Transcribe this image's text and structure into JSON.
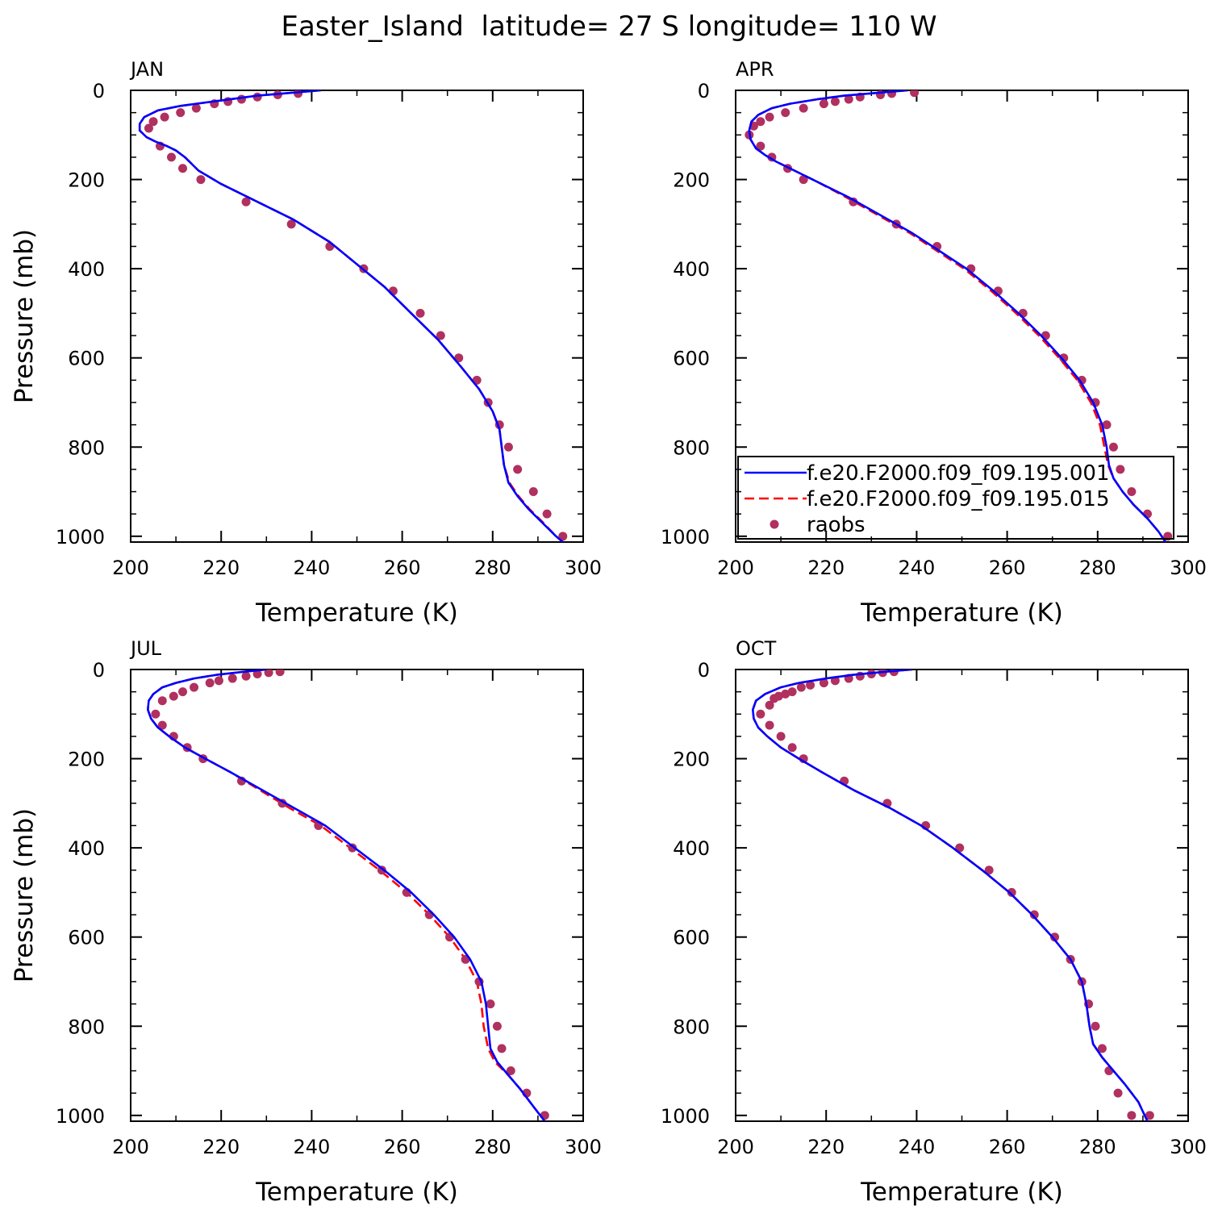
{
  "figure": {
    "title": "Easter_Island  latitude= 27 S longitude= 110 W"
  },
  "chart_data": [
    {
      "type": "line",
      "panel_label": "JAN",
      "xlabel": "Temperature (K)",
      "ylabel": "Pressure (mb)",
      "xlim": [
        200,
        300
      ],
      "ylim": [
        0,
        1013
      ],
      "y_inverted": true,
      "xticks": [
        200,
        220,
        240,
        260,
        280,
        300
      ],
      "yticks": [
        0,
        200,
        400,
        600,
        800,
        1000
      ],
      "show_ylabel": true,
      "series": [
        {
          "name": "f.e20.F2000.f09_f09.195.001",
          "style": "solid",
          "color": "#0000ff",
          "x": [
            242,
            236,
            228,
            222,
            216,
            211,
            206,
            203,
            202,
            202,
            203.5,
            205.5,
            208,
            210,
            212,
            215,
            220,
            228,
            236,
            244,
            250,
            256,
            262,
            268,
            273,
            277,
            280,
            281.5,
            282,
            282.5,
            283.5,
            285.5,
            288,
            291,
            294,
            295.5
          ],
          "y": [
            0,
            5,
            12,
            20,
            28,
            35,
            45,
            60,
            75,
            90,
            105,
            115,
            125,
            135,
            150,
            180,
            210,
            250,
            290,
            340,
            390,
            440,
            500,
            560,
            620,
            670,
            720,
            760,
            800,
            840,
            880,
            910,
            940,
            970,
            1000,
            1013
          ]
        },
        {
          "name": "f.e20.F2000.f09_f09.195.015",
          "style": "dashed",
          "color": "#ff0000",
          "x": [
            242,
            236,
            228,
            222,
            216,
            211,
            206,
            203,
            202,
            202,
            203.5,
            205.5,
            208,
            210,
            212,
            215,
            220,
            228,
            236,
            244,
            250,
            256,
            262,
            268,
            273,
            277,
            280,
            281.5,
            282,
            282.5,
            283.7,
            285.7,
            288.2,
            291.2,
            294,
            295.5
          ],
          "y": [
            0,
            5,
            12,
            20,
            28,
            35,
            45,
            60,
            75,
            90,
            105,
            115,
            125,
            135,
            150,
            180,
            210,
            250,
            290,
            340,
            390,
            440,
            500,
            560,
            620,
            670,
            720,
            760,
            800,
            840,
            880,
            910,
            940,
            970,
            1000,
            1013
          ]
        },
        {
          "name": "raobs",
          "style": "points",
          "color": "#b03060",
          "x": [
            237,
            232.5,
            228,
            224.5,
            221.5,
            218.5,
            214.5,
            211,
            207.5,
            205,
            204,
            206.5,
            209,
            211.5,
            215.5,
            225.5,
            235.5,
            244,
            251.5,
            258,
            264,
            268.5,
            272.5,
            276.5,
            279,
            281.5,
            283.5,
            285.5,
            289,
            292,
            295.5
          ],
          "y": [
            7,
            10,
            15,
            20,
            25,
            30,
            40,
            50,
            60,
            70,
            85,
            125,
            150,
            175,
            200,
            250,
            300,
            350,
            400,
            450,
            500,
            550,
            600,
            650,
            700,
            750,
            800,
            850,
            900,
            950,
            1000
          ]
        }
      ]
    },
    {
      "type": "line",
      "panel_label": "APR",
      "xlabel": "Temperature (K)",
      "ylabel": "",
      "xlim": [
        200,
        300
      ],
      "ylim": [
        0,
        1013
      ],
      "y_inverted": true,
      "xticks": [
        200,
        220,
        240,
        260,
        280,
        300
      ],
      "yticks": [
        0,
        200,
        400,
        600,
        800,
        1000
      ],
      "show_ylabel": false,
      "legend": {
        "placement": "bottom-right",
        "entries": [
          {
            "label": "f.e20.F2000.f09_f09.195.001",
            "style": "solid",
            "color": "#0000ff"
          },
          {
            "label": "f.e20.F2000.f09_f09.195.015",
            "style": "dashed",
            "color": "#ff0000"
          },
          {
            "label": "raobs",
            "style": "points",
            "color": "#b03060"
          }
        ]
      },
      "series": [
        {
          "name": "f.e20.F2000.f09_f09.195.001",
          "style": "solid",
          "color": "#0000ff",
          "x": [
            238,
            232,
            224,
            218,
            212,
            208,
            205,
            203.5,
            203,
            203.3,
            204.5,
            206.5,
            209,
            213,
            218,
            225,
            232,
            239,
            245,
            251,
            257,
            262.5,
            267.5,
            272,
            276,
            279,
            281,
            282,
            282.5,
            283.5,
            285.5,
            288,
            291,
            293.5,
            295
          ],
          "y": [
            0,
            5,
            12,
            20,
            30,
            40,
            55,
            70,
            90,
            110,
            130,
            145,
            160,
            180,
            205,
            240,
            280,
            320,
            360,
            400,
            450,
            500,
            550,
            600,
            650,
            700,
            750,
            800,
            840,
            870,
            900,
            930,
            960,
            990,
            1013
          ]
        },
        {
          "name": "f.e20.F2000.f09_f09.195.015",
          "style": "dashed",
          "color": "#ff0000",
          "x": [
            238,
            232,
            224,
            218,
            212,
            208,
            205,
            203.5,
            203,
            203.3,
            204.5,
            206.5,
            209,
            213,
            218,
            224.5,
            231.5,
            238.5,
            244.5,
            250.5,
            256.5,
            262,
            267,
            271.5,
            275.5,
            278.5,
            280.5,
            281.5,
            282.3,
            283.5,
            285.5,
            288,
            291,
            293.5,
            295
          ],
          "y": [
            0,
            5,
            12,
            20,
            30,
            40,
            55,
            70,
            90,
            110,
            130,
            145,
            160,
            180,
            205,
            240,
            280,
            320,
            360,
            400,
            450,
            500,
            550,
            600,
            650,
            700,
            750,
            800,
            840,
            870,
            900,
            930,
            960,
            990,
            1013
          ]
        },
        {
          "name": "raobs",
          "style": "points",
          "color": "#b03060",
          "x": [
            239.5,
            234.5,
            232,
            227.5,
            225,
            222,
            219.5,
            215,
            211,
            207.5,
            205.5,
            204,
            203,
            205.5,
            208,
            211.5,
            215,
            226,
            235.5,
            244.5,
            252,
            258,
            263.5,
            268.5,
            272.5,
            276.5,
            279.5,
            282,
            283.5,
            285,
            287.5,
            291,
            295.5
          ],
          "y": [
            5,
            7,
            10,
            15,
            20,
            25,
            30,
            40,
            50,
            60,
            70,
            80,
            100,
            125,
            150,
            175,
            200,
            250,
            300,
            350,
            400,
            450,
            500,
            550,
            600,
            650,
            700,
            750,
            800,
            850,
            900,
            950,
            1000
          ]
        }
      ]
    },
    {
      "type": "line",
      "panel_label": "JUL",
      "xlabel": "Temperature (K)",
      "ylabel": "Pressure (mb)",
      "xlim": [
        200,
        300
      ],
      "ylim": [
        0,
        1013
      ],
      "y_inverted": true,
      "xticks": [
        200,
        220,
        240,
        260,
        280,
        300
      ],
      "yticks": [
        0,
        200,
        400,
        600,
        800,
        1000
      ],
      "show_ylabel": true,
      "series": [
        {
          "name": "f.e20.F2000.f09_f09.195.001",
          "style": "solid",
          "color": "#0000ff",
          "x": [
            230,
            225,
            219,
            214,
            210,
            207,
            205,
            204,
            203.8,
            204.5,
            206,
            208.5,
            212,
            216.5,
            222,
            229,
            236,
            243,
            249.5,
            256,
            262,
            267,
            271.5,
            275,
            277.5,
            278.5,
            279,
            279.5,
            281,
            283.5,
            286,
            289,
            291.5
          ],
          "y": [
            0,
            5,
            12,
            20,
            30,
            40,
            55,
            70,
            90,
            110,
            130,
            150,
            175,
            200,
            230,
            270,
            310,
            350,
            400,
            450,
            500,
            550,
            600,
            650,
            700,
            750,
            800,
            850,
            880,
            910,
            940,
            980,
            1013
          ]
        },
        {
          "name": "f.e20.F2000.f09_f09.195.015",
          "style": "dashed",
          "color": "#ff0000",
          "x": [
            230,
            225,
            219,
            214,
            210,
            207,
            205,
            204,
            203.8,
            204.5,
            206,
            208.5,
            212,
            216.5,
            222,
            228.5,
            235,
            242,
            248.5,
            255,
            261,
            266,
            270.5,
            274,
            276.5,
            277.5,
            278,
            279,
            280.5,
            283.5,
            286,
            289,
            291.5
          ],
          "y": [
            0,
            5,
            12,
            20,
            30,
            40,
            55,
            70,
            90,
            110,
            130,
            150,
            175,
            200,
            230,
            270,
            310,
            350,
            400,
            450,
            500,
            550,
            600,
            650,
            700,
            750,
            800,
            850,
            880,
            910,
            940,
            980,
            1013
          ]
        },
        {
          "name": "raobs",
          "style": "points",
          "color": "#b03060",
          "x": [
            233,
            230.5,
            228,
            225.5,
            222.5,
            219.5,
            217.5,
            214,
            211.5,
            209.5,
            207,
            205.5,
            207,
            209.5,
            212.5,
            216,
            224.5,
            233.5,
            241.5,
            249,
            255.5,
            261,
            266,
            270.5,
            274,
            277,
            279.5,
            281,
            282,
            284,
            287.5,
            291.5
          ],
          "y": [
            5,
            7,
            10,
            15,
            20,
            25,
            30,
            40,
            50,
            60,
            70,
            100,
            125,
            150,
            175,
            200,
            250,
            300,
            350,
            400,
            450,
            500,
            550,
            600,
            650,
            700,
            750,
            800,
            850,
            900,
            950,
            1000
          ]
        }
      ]
    },
    {
      "type": "line",
      "panel_label": "OCT",
      "xlabel": "Temperature (K)",
      "ylabel": "",
      "xlim": [
        200,
        300
      ],
      "ylim": [
        0,
        1013
      ],
      "y_inverted": true,
      "xticks": [
        200,
        220,
        240,
        260,
        280,
        300
      ],
      "yticks": [
        0,
        200,
        400,
        600,
        800,
        1000
      ],
      "show_ylabel": false,
      "series": [
        {
          "name": "f.e20.F2000.f09_f09.195.001",
          "style": "solid",
          "color": "#0000ff",
          "x": [
            239,
            233,
            226,
            220,
            214,
            210,
            206.5,
            204.5,
            203.8,
            204,
            205,
            207,
            210,
            214,
            219,
            226,
            234,
            241,
            248,
            254.5,
            260.5,
            265.5,
            270,
            274,
            276.5,
            277.5,
            278.2,
            279,
            281,
            283.5,
            286,
            289,
            291
          ],
          "y": [
            0,
            5,
            12,
            20,
            30,
            40,
            55,
            70,
            90,
            110,
            130,
            150,
            175,
            200,
            230,
            270,
            310,
            350,
            400,
            450,
            500,
            550,
            600,
            650,
            700,
            750,
            800,
            840,
            870,
            900,
            930,
            970,
            1013
          ]
        },
        {
          "name": "f.e20.F2000.f09_f09.195.015",
          "style": "dashed",
          "color": "#ff0000",
          "x": [
            239,
            233,
            226,
            220,
            214,
            210,
            206.5,
            204.5,
            203.8,
            204,
            205,
            207,
            210,
            214,
            219,
            226,
            234,
            241,
            248,
            254.5,
            260.5,
            265.5,
            270,
            274,
            276.5,
            277.5,
            278.2,
            279,
            281,
            283.5,
            286,
            289,
            291
          ],
          "y": [
            0,
            5,
            12,
            20,
            30,
            40,
            55,
            70,
            90,
            110,
            130,
            150,
            175,
            200,
            230,
            270,
            310,
            350,
            400,
            450,
            500,
            550,
            600,
            650,
            700,
            750,
            800,
            840,
            870,
            900,
            930,
            970,
            1013
          ]
        },
        {
          "name": "raobs",
          "style": "points",
          "color": "#b03060",
          "x": [
            235,
            232.5,
            230,
            227.5,
            225,
            222,
            219.5,
            216.5,
            214.5,
            212.5,
            211,
            209.5,
            208.5,
            207.5,
            205.5,
            207.5,
            210,
            212.5,
            215,
            224,
            233.5,
            242,
            249.5,
            256,
            261,
            266,
            270.5,
            274,
            276.5,
            278,
            279.5,
            281,
            282.5,
            284.5,
            287.5,
            291.5
          ],
          "y": [
            5,
            7,
            10,
            15,
            20,
            25,
            30,
            35,
            40,
            50,
            55,
            60,
            65,
            80,
            100,
            125,
            150,
            175,
            200,
            250,
            300,
            350,
            400,
            450,
            500,
            550,
            600,
            650,
            700,
            750,
            800,
            850,
            900,
            950,
            1000,
            1000
          ]
        }
      ]
    }
  ]
}
